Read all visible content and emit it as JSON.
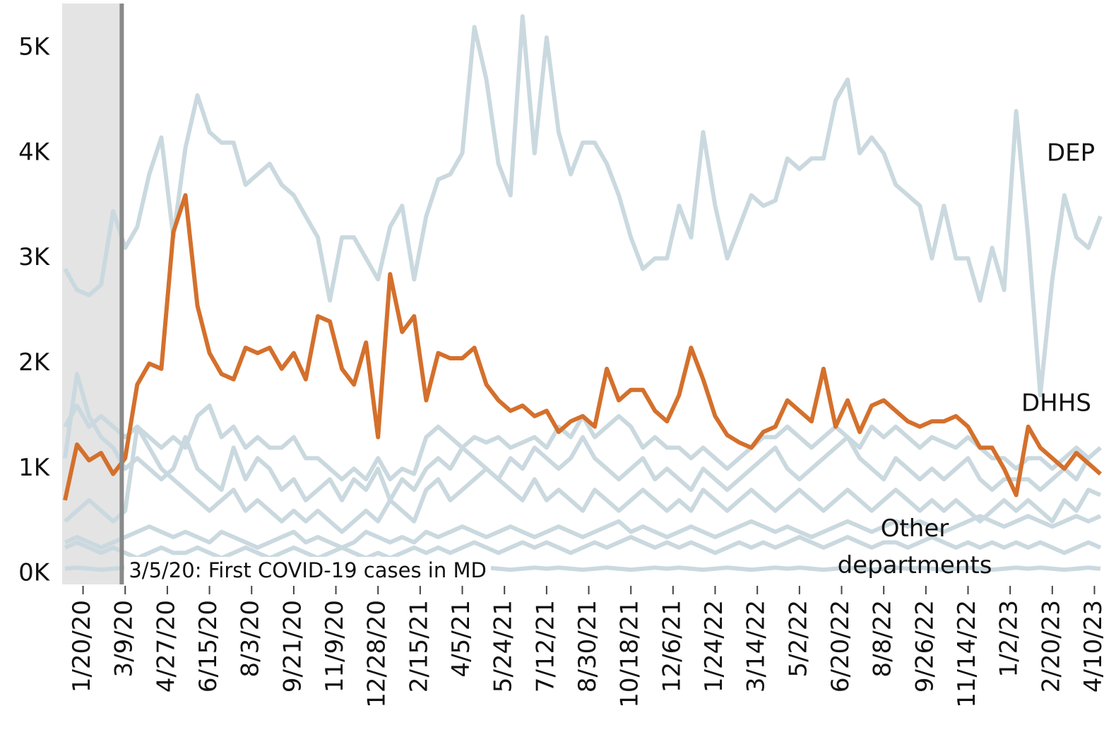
{
  "chart_data": {
    "type": "line",
    "annotations": [
      "DEP",
      "DHHS",
      "Other departments"
    ],
    "event": {
      "x": "3/5/20",
      "label": "3/5/20: First COVID-19 cases in MD",
      "shade_color": "#e4e4e4",
      "line_color": "#8a8a8a"
    },
    "x": [
      "12/30/19",
      "1/13/20",
      "1/27/20",
      "2/10/20",
      "2/24/20",
      "3/9/20",
      "3/23/20",
      "4/6/20",
      "4/20/20",
      "5/4/20",
      "5/18/20",
      "6/1/20",
      "6/15/20",
      "6/29/20",
      "7/13/20",
      "7/27/20",
      "8/10/20",
      "8/24/20",
      "9/7/20",
      "9/21/20",
      "10/5/20",
      "10/19/20",
      "11/2/20",
      "11/16/20",
      "11/30/20",
      "12/14/20",
      "12/28/20",
      "1/11/21",
      "1/25/21",
      "2/8/21",
      "2/22/21",
      "3/8/21",
      "3/22/21",
      "4/5/21",
      "4/19/21",
      "5/3/21",
      "5/17/21",
      "5/31/21",
      "6/14/21",
      "6/28/21",
      "7/12/21",
      "7/26/21",
      "8/9/21",
      "8/23/21",
      "9/6/21",
      "9/20/21",
      "10/4/21",
      "10/18/21",
      "11/1/21",
      "11/15/21",
      "11/29/21",
      "12/13/21",
      "12/27/21",
      "1/10/22",
      "1/24/22",
      "2/7/22",
      "2/21/22",
      "3/7/22",
      "3/21/22",
      "4/4/22",
      "4/18/22",
      "5/2/22",
      "5/16/22",
      "5/30/22",
      "6/13/22",
      "6/27/22",
      "7/11/22",
      "7/25/22",
      "8/8/22",
      "8/22/22",
      "9/5/22",
      "9/19/22",
      "10/3/22",
      "10/17/22",
      "10/31/22",
      "11/14/22",
      "11/28/22",
      "12/12/22",
      "12/26/22",
      "1/9/23",
      "1/23/23",
      "2/6/23",
      "2/20/23",
      "3/6/23",
      "3/20/23",
      "4/3/23",
      "4/17/23"
    ],
    "xlim": [
      "12/30/19",
      "4/17/23"
    ],
    "xticks": [
      "1/20/20",
      "3/9/20",
      "4/27/20",
      "6/15/20",
      "8/3/20",
      "9/21/20",
      "11/9/20",
      "12/28/20",
      "2/15/21",
      "4/5/21",
      "5/24/21",
      "7/12/21",
      "8/30/21",
      "10/18/21",
      "12/6/21",
      "1/24/22",
      "3/14/22",
      "5/2/22",
      "6/20/22",
      "8/8/22",
      "9/26/22",
      "11/14/22",
      "1/2/23",
      "2/20/23",
      "4/10/23"
    ],
    "ylim": [
      -100,
      5450
    ],
    "yticks": [
      {
        "value": 0,
        "label": "0K"
      },
      {
        "value": 1000,
        "label": "1K"
      },
      {
        "value": 2000,
        "label": "2K"
      },
      {
        "value": 3000,
        "label": "3K"
      },
      {
        "value": 4000,
        "label": "4K"
      },
      {
        "value": 5000,
        "label": "5K"
      }
    ],
    "series": [
      {
        "color": "#cad9df",
        "values": [
          1400,
          1600,
          1400,
          1500,
          1400,
          1300,
          1400,
          1300,
          1200,
          1300,
          1200,
          1500,
          1600,
          1300,
          1400,
          1200,
          1300,
          1200,
          1200,
          1300,
          1100,
          1100,
          1000,
          900,
          1000,
          900,
          1100,
          900,
          1000,
          950,
          1300,
          1400,
          1300,
          1200,
          1300,
          1250,
          1300,
          1200,
          1250,
          1300,
          1200,
          1400,
          1300,
          1500,
          1300,
          1400,
          1500,
          1400,
          1200,
          1300,
          1200,
          1200,
          1100,
          1200,
          1100,
          1000,
          1100,
          1200,
          1300,
          1300,
          1400,
          1300,
          1200,
          1300,
          1400,
          1300,
          1200,
          1400,
          1300,
          1400,
          1300,
          1200,
          1300,
          1250,
          1200,
          1300,
          1200,
          1100,
          1100,
          1000,
          1100,
          1100,
          1000,
          1100,
          1200,
          1100,
          1200
        ]
      },
      {
        "color": "#cad9df",
        "values": [
          1100,
          1900,
          1500,
          1300,
          1200,
          1000,
          1100,
          1000,
          900,
          1000,
          1300,
          1000,
          900,
          800,
          1200,
          900,
          1100,
          1000,
          800,
          900,
          700,
          800,
          900,
          700,
          900,
          800,
          1000,
          700,
          900,
          800,
          1000,
          1100,
          1000,
          1200,
          1100,
          1000,
          900,
          1100,
          1000,
          1200,
          1100,
          1000,
          1100,
          1300,
          1100,
          1000,
          900,
          1000,
          1100,
          900,
          1000,
          900,
          800,
          1000,
          900,
          800,
          900,
          1000,
          1100,
          1200,
          1000,
          900,
          1000,
          1100,
          1200,
          1300,
          1100,
          1000,
          900,
          1100,
          1000,
          900,
          1000,
          900,
          1000,
          1100,
          900,
          800,
          900,
          900,
          900,
          800,
          900,
          1000,
          900,
          1100,
          1200
        ]
      },
      {
        "color": "#cad9df",
        "values": [
          500,
          600,
          700,
          600,
          500,
          600,
          1400,
          1200,
          1000,
          900,
          800,
          700,
          600,
          700,
          800,
          600,
          700,
          600,
          500,
          600,
          500,
          600,
          500,
          400,
          500,
          600,
          500,
          700,
          600,
          500,
          800,
          900,
          700,
          800,
          900,
          1000,
          900,
          800,
          700,
          900,
          700,
          800,
          700,
          600,
          800,
          700,
          600,
          700,
          800,
          700,
          600,
          700,
          600,
          800,
          700,
          600,
          700,
          800,
          700,
          600,
          700,
          800,
          700,
          600,
          700,
          800,
          700,
          600,
          700,
          800,
          700,
          600,
          700,
          600,
          700,
          600,
          500,
          600,
          700,
          600,
          700,
          600,
          500,
          700,
          600,
          800,
          750
        ]
      },
      {
        "color": "#cad9df",
        "values": [
          300,
          350,
          300,
          250,
          300,
          350,
          400,
          450,
          400,
          350,
          400,
          350,
          300,
          400,
          350,
          300,
          250,
          300,
          350,
          400,
          300,
          350,
          300,
          250,
          300,
          400,
          350,
          300,
          350,
          300,
          400,
          350,
          400,
          450,
          400,
          350,
          400,
          450,
          400,
          350,
          400,
          450,
          400,
          350,
          400,
          450,
          500,
          400,
          450,
          400,
          350,
          400,
          450,
          400,
          350,
          400,
          450,
          500,
          450,
          400,
          450,
          400,
          350,
          400,
          450,
          500,
          450,
          400,
          450,
          500,
          450,
          500,
          450,
          400,
          450,
          500,
          550,
          500,
          450,
          500,
          550,
          500,
          450,
          500,
          550,
          500,
          550
        ]
      },
      {
        "color": "#cad9df",
        "values": [
          250,
          300,
          250,
          200,
          250,
          200,
          150,
          200,
          250,
          200,
          200,
          250,
          200,
          150,
          200,
          250,
          200,
          150,
          200,
          250,
          200,
          150,
          200,
          250,
          200,
          150,
          200,
          150,
          200,
          250,
          200,
          250,
          200,
          250,
          300,
          250,
          200,
          250,
          300,
          250,
          300,
          250,
          200,
          250,
          300,
          250,
          300,
          350,
          300,
          250,
          300,
          250,
          300,
          250,
          200,
          250,
          300,
          250,
          300,
          250,
          300,
          350,
          300,
          250,
          300,
          350,
          300,
          250,
          300,
          300,
          250,
          300,
          350,
          300,
          250,
          300,
          250,
          300,
          250,
          300,
          250,
          300,
          250,
          200,
          250,
          300,
          250
        ]
      },
      {
        "color": "#cad9df",
        "values": [
          50,
          60,
          50,
          40,
          50,
          60,
          50,
          40,
          50,
          60,
          50,
          60,
          50,
          40,
          50,
          60,
          50,
          40,
          50,
          60,
          50,
          60,
          50,
          40,
          50,
          60,
          50,
          40,
          50,
          60,
          50,
          60,
          50,
          40,
          50,
          60,
          50,
          40,
          50,
          60,
          50,
          60,
          50,
          40,
          50,
          60,
          50,
          40,
          50,
          60,
          50,
          60,
          50,
          40,
          50,
          60,
          50,
          40,
          50,
          60,
          50,
          60,
          50,
          40,
          50,
          60,
          50,
          40,
          50,
          60,
          50,
          60,
          50,
          40,
          50,
          60,
          50,
          40,
          50,
          60,
          50,
          60,
          50,
          40,
          50,
          60,
          50
        ]
      },
      {
        "name": "DEP",
        "color": "#cad9df",
        "values": [
          2900,
          2700,
          2650,
          2750,
          3450,
          3100,
          3300,
          3800,
          4150,
          3200,
          4050,
          4550,
          4200,
          4100,
          4100,
          3700,
          3800,
          3900,
          3700,
          3600,
          3400,
          3200,
          2600,
          3200,
          3200,
          3000,
          2800,
          3300,
          3500,
          2800,
          3400,
          3750,
          3800,
          4000,
          5200,
          4700,
          3900,
          3600,
          5300,
          4000,
          5100,
          4200,
          3800,
          4100,
          4100,
          3900,
          3600,
          3200,
          2900,
          3000,
          3000,
          3500,
          3200,
          4200,
          3500,
          3000,
          3300,
          3600,
          3500,
          3550,
          3950,
          3850,
          3950,
          3950,
          4500,
          4700,
          4000,
          4150,
          4000,
          3700,
          3600,
          3500,
          3000,
          3500,
          3000,
          3000,
          2600,
          3100,
          2700,
          4400,
          3200,
          1700,
          2800,
          3600,
          3200,
          3100,
          3400
        ]
      },
      {
        "name": "DHHS",
        "color": "#d4702c",
        "values": [
          700,
          1230,
          1080,
          1150,
          950,
          1100,
          1800,
          2000,
          1950,
          3250,
          3600,
          2550,
          2100,
          1900,
          1850,
          2150,
          2100,
          2150,
          1950,
          2100,
          1850,
          2450,
          2400,
          1950,
          1800,
          2200,
          1300,
          2850,
          2300,
          2450,
          1650,
          2100,
          2050,
          2050,
          2150,
          1800,
          1650,
          1550,
          1600,
          1500,
          1550,
          1350,
          1450,
          1500,
          1400,
          1950,
          1650,
          1750,
          1750,
          1550,
          1450,
          1700,
          2150,
          1850,
          1500,
          1320,
          1250,
          1200,
          1350,
          1400,
          1650,
          1550,
          1450,
          1950,
          1400,
          1650,
          1350,
          1600,
          1650,
          1550,
          1450,
          1400,
          1450,
          1450,
          1500,
          1400,
          1200,
          1200,
          1000,
          750,
          1400,
          1200,
          1100,
          1000,
          1150,
          1050,
          950
        ]
      }
    ]
  }
}
